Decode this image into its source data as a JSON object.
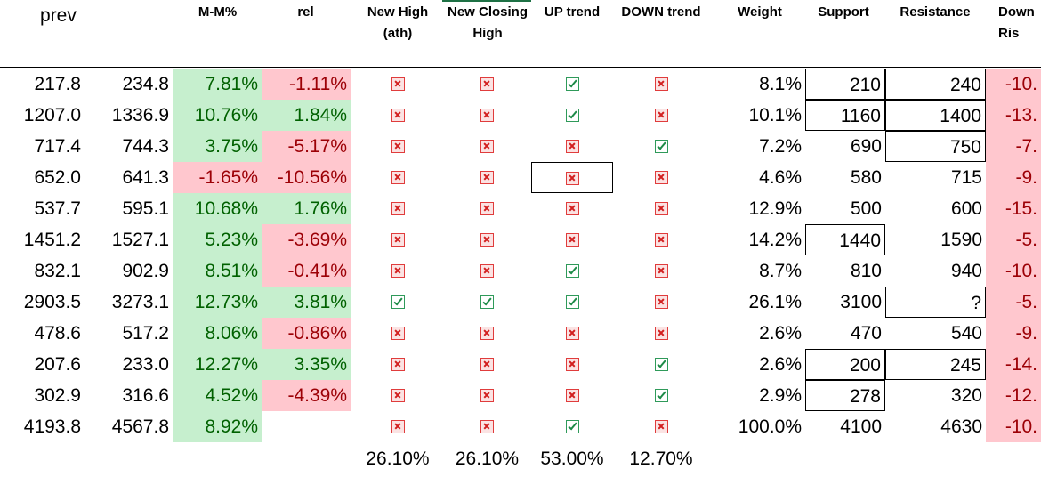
{
  "headers": {
    "prev": "prev",
    "mm": "M-M%",
    "rel": "rel",
    "new_high": "New High (ath)",
    "new_closing_high": "New Closing High",
    "up_trend": "UP trend",
    "down_trend": "DOWN trend",
    "weight": "Weight",
    "support": "Support",
    "resistance": "Resistance",
    "down_rise": "Down Ris"
  },
  "rows": [
    {
      "prev": "217.8",
      "cur": "234.8",
      "mm": "7.81%",
      "rel": "-1.11%",
      "nh": "x",
      "nch": "x",
      "up": "check",
      "down": "x",
      "weight": "8.1%",
      "support": "210",
      "resistance": "240",
      "down_rise": "-10."
    },
    {
      "prev": "1207.0",
      "cur": "1336.9",
      "mm": "10.76%",
      "rel": "1.84%",
      "nh": "x",
      "nch": "x",
      "up": "check",
      "down": "x",
      "weight": "10.1%",
      "support": "1160",
      "resistance": "1400",
      "down_rise": "-13."
    },
    {
      "prev": "717.4",
      "cur": "744.3",
      "mm": "3.75%",
      "rel": "-5.17%",
      "nh": "x",
      "nch": "x",
      "up": "x",
      "down": "check",
      "weight": "7.2%",
      "support": "690",
      "resistance": "750",
      "down_rise": "-7."
    },
    {
      "prev": "652.0",
      "cur": "641.3",
      "mm": "-1.65%",
      "rel": "-10.56%",
      "nh": "x",
      "nch": "x",
      "up": "x",
      "down": "x",
      "weight": "4.6%",
      "support": "580",
      "resistance": "715",
      "down_rise": "-9."
    },
    {
      "prev": "537.7",
      "cur": "595.1",
      "mm": "10.68%",
      "rel": "1.76%",
      "nh": "x",
      "nch": "x",
      "up": "x",
      "down": "x",
      "weight": "12.9%",
      "support": "500",
      "resistance": "600",
      "down_rise": "-15."
    },
    {
      "prev": "1451.2",
      "cur": "1527.1",
      "mm": "5.23%",
      "rel": "-3.69%",
      "nh": "x",
      "nch": "x",
      "up": "x",
      "down": "x",
      "weight": "14.2%",
      "support": "1440",
      "resistance": "1590",
      "down_rise": "-5."
    },
    {
      "prev": "832.1",
      "cur": "902.9",
      "mm": "8.51%",
      "rel": "-0.41%",
      "nh": "x",
      "nch": "x",
      "up": "check",
      "down": "x",
      "weight": "8.7%",
      "support": "810",
      "resistance": "940",
      "down_rise": "-10."
    },
    {
      "prev": "2903.5",
      "cur": "3273.1",
      "mm": "12.73%",
      "rel": "3.81%",
      "nh": "check",
      "nch": "check",
      "up": "check",
      "down": "x",
      "weight": "26.1%",
      "support": "3100",
      "resistance": "?",
      "down_rise": "-5."
    },
    {
      "prev": "478.6",
      "cur": "517.2",
      "mm": "8.06%",
      "rel": "-0.86%",
      "nh": "x",
      "nch": "x",
      "up": "x",
      "down": "x",
      "weight": "2.6%",
      "support": "470",
      "resistance": "540",
      "down_rise": "-9."
    },
    {
      "prev": "207.6",
      "cur": "233.0",
      "mm": "12.27%",
      "rel": "3.35%",
      "nh": "x",
      "nch": "x",
      "up": "x",
      "down": "check",
      "weight": "2.6%",
      "support": "200",
      "resistance": "245",
      "down_rise": "-14."
    },
    {
      "prev": "302.9",
      "cur": "316.6",
      "mm": "4.52%",
      "rel": "-4.39%",
      "nh": "x",
      "nch": "x",
      "up": "x",
      "down": "check",
      "weight": "2.9%",
      "support": "278",
      "resistance": "320",
      "down_rise": "-12."
    },
    {
      "prev": "4193.8",
      "cur": "4567.8",
      "mm": "8.92%",
      "rel": "",
      "nh": "x",
      "nch": "x",
      "up": "check",
      "down": "x",
      "weight": "100.0%",
      "support": "4100",
      "resistance": "4630",
      "down_rise": "-10."
    }
  ],
  "totals": {
    "nh": "26.10%",
    "nch": "26.10%",
    "up": "53.00%",
    "down": "12.70%"
  },
  "colors": {
    "positive_fill": "#c6efce",
    "positive_text": "#006100",
    "negative_fill": "#ffc7ce",
    "negative_text": "#9c0006",
    "check_icon": "#1d8a47",
    "cross_icon": "#d21f1f"
  },
  "icons": {
    "x": "cross-box-icon",
    "check": "check-box-icon"
  }
}
